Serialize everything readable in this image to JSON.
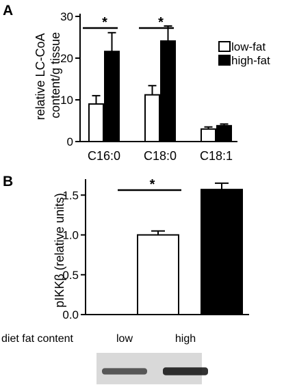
{
  "panels": [
    {
      "letter": "A",
      "ylabel": "relative LC-CoA content/g tissue",
      "legend": [
        {
          "label": "low-fat",
          "fill": "#ffffff"
        },
        {
          "label": "high-fat",
          "fill": "#000000"
        }
      ]
    },
    {
      "letter": "B",
      "ylabel": "pIKKβ (relative units)"
    }
  ],
  "significance_marker": "*",
  "western_blot": {
    "row_label": "diet fat content",
    "lane_labels": [
      "low",
      "high"
    ],
    "band_intensity": [
      0.55,
      0.9
    ]
  },
  "chart_data": [
    {
      "type": "bar",
      "title": "",
      "xlabel": "",
      "ylabel": "relative LC-CoA content/g tissue",
      "categories": [
        "C16:0",
        "C18:0",
        "C18:1"
      ],
      "series": [
        {
          "name": "low-fat",
          "color": "#ffffff",
          "values": [
            9.0,
            11.2,
            3.0
          ],
          "errors": [
            2.0,
            2.2,
            0.5
          ]
        },
        {
          "name": "high-fat",
          "color": "#000000",
          "values": [
            21.6,
            24.1,
            3.8
          ],
          "errors": [
            4.5,
            3.6,
            0.4
          ]
        }
      ],
      "ylim": [
        0,
        30
      ],
      "yticks": [
        0,
        10,
        20,
        30
      ],
      "ytick_labels": [
        "0",
        "10",
        "20",
        "30"
      ],
      "legend_position": "right",
      "significance": [
        {
          "category": "C16:0",
          "label": "*"
        },
        {
          "category": "C18:0",
          "label": "*"
        }
      ]
    },
    {
      "type": "bar",
      "title": "",
      "xlabel": "",
      "ylabel": "pIKKβ (relative units)",
      "categories": [
        "low",
        "high"
      ],
      "series": [
        {
          "name": "",
          "colors": [
            "#ffffff",
            "#000000"
          ],
          "values": [
            1.0,
            1.57
          ],
          "errors": [
            0.05,
            0.08
          ]
        }
      ],
      "ylim": [
        0,
        1.7
      ],
      "yticks": [
        0.0,
        0.5,
        1.0,
        1.5
      ],
      "ytick_labels": [
        "0.0",
        "0.5",
        "1.0",
        "1.5"
      ],
      "significance": [
        {
          "between": [
            "low",
            "high"
          ],
          "label": "*"
        }
      ]
    }
  ]
}
